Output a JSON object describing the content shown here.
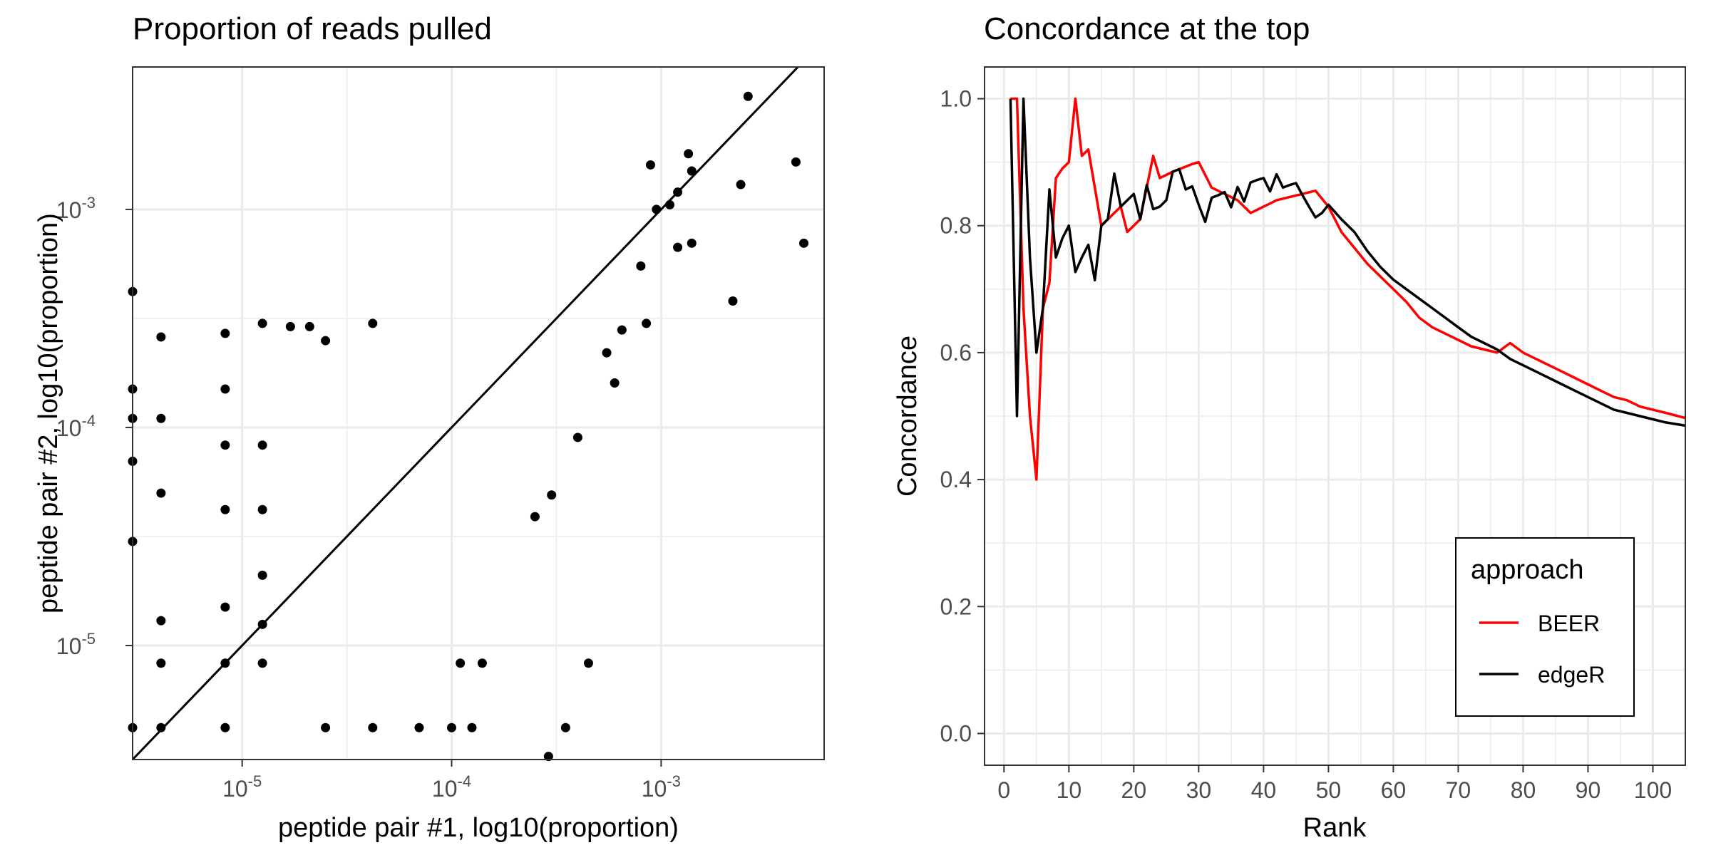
{
  "chart_data": [
    {
      "type": "scatter",
      "title": "Proportion of reads pulled",
      "xlabel": "peptide pair #1, log10(proportion)",
      "ylabel": "peptide pair #2, log10(proportion)",
      "x_scale": "log10",
      "y_scale": "log10",
      "xlim": [
        3e-06,
        0.006
      ],
      "ylim": [
        3e-06,
        0.0045
      ],
      "x_ticks": [
        {
          "value": 1e-05,
          "base": "10",
          "exp": "-5"
        },
        {
          "value": 0.0001,
          "base": "10",
          "exp": "-4"
        },
        {
          "value": 0.001,
          "base": "10",
          "exp": "-3"
        }
      ],
      "y_ticks": [
        {
          "value": 1e-05,
          "base": "10",
          "exp": "-5"
        },
        {
          "value": 0.0001,
          "base": "10",
          "exp": "-4"
        },
        {
          "value": 0.001,
          "base": "10",
          "exp": "-3"
        }
      ],
      "reference_line": "y = x",
      "grid": true,
      "points": [
        {
          "x": 0.0026,
          "y": 0.0033
        },
        {
          "x": 0.0044,
          "y": 0.00165
        },
        {
          "x": 0.0048,
          "y": 0.0007
        },
        {
          "x": 0.0024,
          "y": 0.0013
        },
        {
          "x": 0.0022,
          "y": 0.00038
        },
        {
          "x": 0.00135,
          "y": 0.0018
        },
        {
          "x": 0.0014,
          "y": 0.0015
        },
        {
          "x": 0.0012,
          "y": 0.0012
        },
        {
          "x": 0.0011,
          "y": 0.00105
        },
        {
          "x": 0.0014,
          "y": 0.0007
        },
        {
          "x": 0.0012,
          "y": 0.00067
        },
        {
          "x": 0.00089,
          "y": 0.0016
        },
        {
          "x": 0.00095,
          "y": 0.001
        },
        {
          "x": 0.0008,
          "y": 0.00055
        },
        {
          "x": 0.00085,
          "y": 0.0003
        },
        {
          "x": 0.00065,
          "y": 0.00028
        },
        {
          "x": 0.00055,
          "y": 0.00022
        },
        {
          "x": 0.0006,
          "y": 0.00016
        },
        {
          "x": 0.00045,
          "y": 8.3e-06
        },
        {
          "x": 0.00035,
          "y": 4.2e-06
        },
        {
          "x": 0.00029,
          "y": 3.1e-06
        },
        {
          "x": 0.0003,
          "y": 4.9e-05
        },
        {
          "x": 0.00025,
          "y": 3.9e-05
        },
        {
          "x": 0.0004,
          "y": 9e-05
        },
        {
          "x": 3e-06,
          "y": 0.00042
        },
        {
          "x": 3e-06,
          "y": 0.00015
        },
        {
          "x": 3e-06,
          "y": 0.00011
        },
        {
          "x": 3e-06,
          "y": 7e-05
        },
        {
          "x": 3e-06,
          "y": 3e-05
        },
        {
          "x": 3e-06,
          "y": 4.2e-06
        },
        {
          "x": 4.1e-06,
          "y": 0.00026
        },
        {
          "x": 4.1e-06,
          "y": 0.00011
        },
        {
          "x": 4.1e-06,
          "y": 5e-05
        },
        {
          "x": 4.1e-06,
          "y": 1.3e-05
        },
        {
          "x": 4.1e-06,
          "y": 8.3e-06
        },
        {
          "x": 4.1e-06,
          "y": 4.2e-06
        },
        {
          "x": 8.3e-06,
          "y": 0.00027
        },
        {
          "x": 8.3e-06,
          "y": 0.00015
        },
        {
          "x": 8.3e-06,
          "y": 8.3e-05
        },
        {
          "x": 8.3e-06,
          "y": 4.2e-05
        },
        {
          "x": 8.3e-06,
          "y": 1.5e-05
        },
        {
          "x": 8.3e-06,
          "y": 8.3e-06
        },
        {
          "x": 8.3e-06,
          "y": 4.2e-06
        },
        {
          "x": 1.25e-05,
          "y": 0.0003
        },
        {
          "x": 1.25e-05,
          "y": 8.3e-05
        },
        {
          "x": 1.25e-05,
          "y": 4.2e-05
        },
        {
          "x": 1.25e-05,
          "y": 2.1e-05
        },
        {
          "x": 1.25e-05,
          "y": 1.25e-05
        },
        {
          "x": 1.25e-05,
          "y": 8.3e-06
        },
        {
          "x": 1.7e-05,
          "y": 0.00029
        },
        {
          "x": 2.1e-05,
          "y": 0.00029
        },
        {
          "x": 2.5e-05,
          "y": 0.00025
        },
        {
          "x": 2.5e-05,
          "y": 4.2e-06
        },
        {
          "x": 4.2e-05,
          "y": 0.0003
        },
        {
          "x": 4.2e-05,
          "y": 4.2e-06
        },
        {
          "x": 7e-05,
          "y": 4.2e-06
        },
        {
          "x": 0.0001,
          "y": 4.2e-06
        },
        {
          "x": 0.000125,
          "y": 4.2e-06
        },
        {
          "x": 0.00014,
          "y": 8.3e-06
        },
        {
          "x": 0.00011,
          "y": 8.3e-06
        }
      ]
    },
    {
      "type": "line",
      "title": "Concordance at the top",
      "xlabel": "Rank",
      "ylabel": "Concordance",
      "xlim": [
        -3,
        105
      ],
      "ylim": [
        -0.05,
        1.05
      ],
      "x_ticks": [
        0,
        10,
        20,
        30,
        40,
        50,
        60,
        70,
        80,
        90,
        100
      ],
      "y_ticks": [
        "0.0",
        "0.2",
        "0.4",
        "0.6",
        "0.8",
        "1.0"
      ],
      "grid": true,
      "legend": {
        "title": "approach",
        "position": "bottom-right"
      },
      "series": [
        {
          "name": "BEER",
          "color": "#ff0000",
          "x": [
            1,
            2,
            3,
            4,
            5,
            6,
            7,
            8,
            9,
            10,
            11,
            12,
            13,
            14,
            15,
            16,
            17,
            18,
            19,
            20,
            21,
            22,
            23,
            24,
            25,
            26,
            27,
            28,
            29,
            30,
            32,
            34,
            36,
            38,
            40,
            42,
            44,
            46,
            48,
            50,
            52,
            54,
            56,
            58,
            60,
            62,
            64,
            66,
            68,
            70,
            72,
            74,
            76,
            78,
            80,
            82,
            84,
            86,
            88,
            90,
            92,
            94,
            96,
            98,
            100,
            102,
            105
          ],
          "y": [
            1.0,
            1.0,
            0.67,
            0.5,
            0.4,
            0.67,
            0.71,
            0.875,
            0.89,
            0.9,
            1.0,
            0.91,
            0.92,
            0.86,
            0.8,
            0.81,
            0.82,
            0.83,
            0.79,
            0.8,
            0.81,
            0.86,
            0.91,
            0.875,
            0.88,
            0.885,
            0.889,
            0.893,
            0.897,
            0.9,
            0.86,
            0.85,
            0.84,
            0.82,
            0.83,
            0.84,
            0.845,
            0.85,
            0.855,
            0.83,
            0.79,
            0.765,
            0.74,
            0.72,
            0.7,
            0.68,
            0.655,
            0.64,
            0.63,
            0.62,
            0.61,
            0.605,
            0.6,
            0.615,
            0.6,
            0.59,
            0.58,
            0.57,
            0.56,
            0.55,
            0.54,
            0.53,
            0.525,
            0.515,
            0.51,
            0.505,
            0.497
          ]
        },
        {
          "name": "edgeR",
          "color": "#000000",
          "x": [
            1,
            2,
            3,
            4,
            5,
            6,
            7,
            8,
            9,
            10,
            11,
            12,
            13,
            14,
            15,
            16,
            17,
            18,
            19,
            20,
            21,
            22,
            23,
            24,
            25,
            26,
            27,
            28,
            29,
            30,
            31,
            32,
            33,
            34,
            35,
            36,
            37,
            38,
            39,
            40,
            41,
            42,
            43,
            44,
            45,
            46,
            47,
            48,
            49,
            50,
            52,
            54,
            56,
            58,
            60,
            62,
            64,
            66,
            68,
            70,
            72,
            74,
            76,
            78,
            80,
            82,
            84,
            86,
            88,
            90,
            92,
            94,
            96,
            98,
            100,
            102,
            105
          ],
          "y": [
            1.0,
            0.5,
            1.0,
            0.75,
            0.6,
            0.67,
            0.857,
            0.75,
            0.78,
            0.8,
            0.727,
            0.75,
            0.77,
            0.714,
            0.8,
            0.81,
            0.882,
            0.83,
            0.84,
            0.85,
            0.81,
            0.864,
            0.826,
            0.83,
            0.84,
            0.885,
            0.889,
            0.857,
            0.862,
            0.833,
            0.806,
            0.844,
            0.848,
            0.853,
            0.829,
            0.861,
            0.838,
            0.868,
            0.872,
            0.875,
            0.854,
            0.881,
            0.86,
            0.864,
            0.867,
            0.848,
            0.83,
            0.813,
            0.82,
            0.833,
            0.81,
            0.79,
            0.76,
            0.735,
            0.715,
            0.7,
            0.685,
            0.67,
            0.655,
            0.64,
            0.625,
            0.615,
            0.605,
            0.59,
            0.58,
            0.57,
            0.56,
            0.55,
            0.54,
            0.53,
            0.52,
            0.51,
            0.505,
            0.5,
            0.495,
            0.49,
            0.485
          ]
        }
      ]
    }
  ]
}
